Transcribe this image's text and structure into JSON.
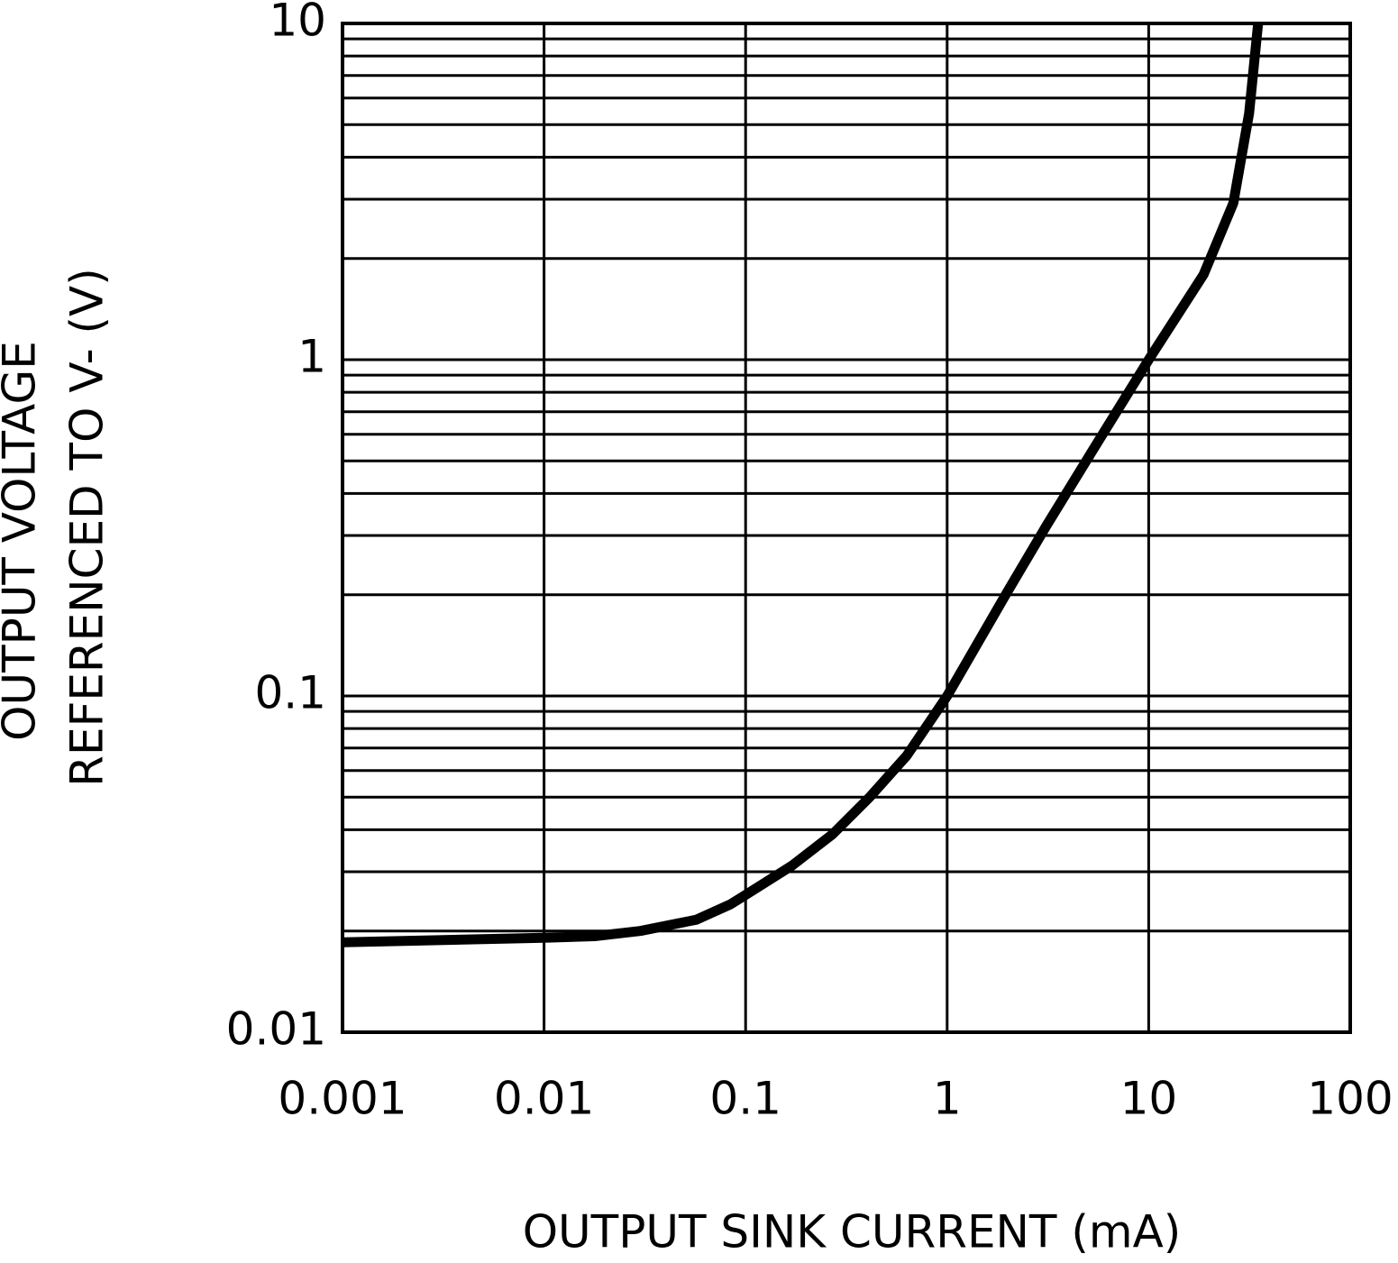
{
  "chart_data": {
    "type": "line",
    "x_label": "OUTPUT SINK CURRENT (mA)",
    "y_label": [
      "OUTPUT VOLTAGE",
      "REFERENCED TO V- (V)"
    ],
    "xscale": "log",
    "yscale": "log",
    "xlim": [
      0.001,
      100
    ],
    "ylim": [
      0.01,
      10
    ],
    "xticks": [
      0.001,
      0.01,
      0.1,
      1,
      10,
      100
    ],
    "yticks": [
      0.01,
      0.1,
      1,
      10
    ],
    "yminorticks": [
      0.02,
      0.03,
      0.04,
      0.05,
      0.06,
      0.07,
      0.08,
      0.09,
      0.2,
      0.3,
      0.4,
      0.5,
      0.6,
      0.7,
      0.8,
      0.9,
      2,
      3,
      4,
      5,
      6,
      7,
      8,
      9
    ],
    "grid": true,
    "series": [
      {
        "color": "#000000",
        "x": [
          0.001,
          0.01,
          0.0178,
          0.03,
          0.057,
          0.084,
          0.1,
          0.17,
          0.27,
          0.41,
          0.63,
          1,
          1.95,
          3.1,
          5.2,
          10,
          18.7,
          26.3,
          31.5,
          34.9
        ],
        "values": [
          0.0185,
          0.0191,
          0.0193,
          0.02,
          0.0216,
          0.024,
          0.0256,
          0.0313,
          0.0388,
          0.0498,
          0.0664,
          0.1,
          0.2,
          0.32,
          0.53,
          1,
          1.79,
          2.92,
          5.4,
          10
        ]
      }
    ]
  }
}
